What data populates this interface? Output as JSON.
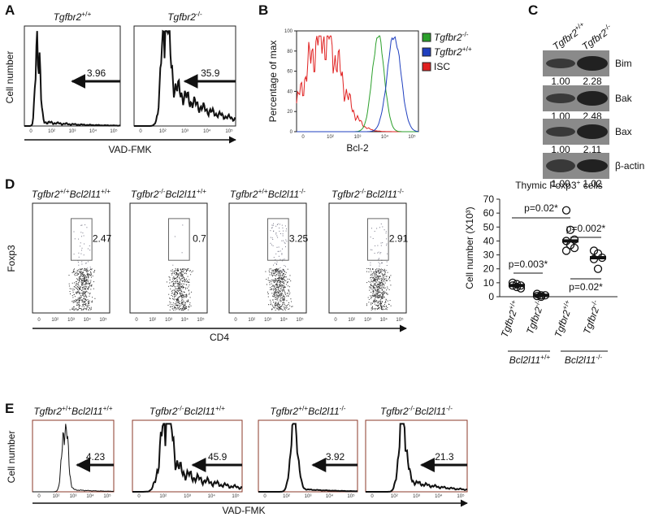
{
  "panel_labels": [
    "A",
    "B",
    "C",
    "D",
    "E"
  ],
  "flow_ticks": [
    "0",
    "10²",
    "10³",
    "10⁴",
    "10⁵"
  ],
  "panel_a": {
    "genotypes": [
      [
        "Tgfbr2",
        "+/+"
      ],
      [
        "Tgfbr2",
        "-/-"
      ]
    ],
    "gate_values": [
      "3.96",
      "35.9"
    ],
    "y_label": "Cell number",
    "x_label": "VAD-FMK"
  },
  "panel_b": {
    "y_label": "Percentage of max",
    "x_label": "Bcl-2",
    "ylim": [
      0,
      100
    ],
    "yticks": [
      0,
      20,
      40,
      60,
      80,
      100
    ],
    "legend": [
      {
        "label": [
          "Tgfbr2",
          "-/-"
        ],
        "color": "#2ca02c"
      },
      {
        "label": [
          "Tgfbr2",
          "+/+"
        ],
        "color": "#1f3fbf"
      },
      {
        "label": [
          "ISC"
        ],
        "color": "#e02020"
      }
    ]
  },
  "panel_c": {
    "columns": [
      [
        "Tgfbr2",
        "+/+"
      ],
      [
        "Tgfbr2",
        "-/-"
      ]
    ],
    "rows": [
      {
        "protein": "Bim",
        "values": [
          "1.00",
          "2.28"
        ]
      },
      {
        "protein": "Bak",
        "values": [
          "1.00",
          "2.48"
        ]
      },
      {
        "protein": "Bax",
        "values": [
          "1.00",
          "2.11"
        ]
      },
      {
        "protein": "β-actin",
        "values": [
          "1.00",
          "1.02"
        ]
      }
    ]
  },
  "panel_d": {
    "genotypes": [
      [
        "Tgfbr2",
        "+/+",
        "Bcl2l11",
        "+/+"
      ],
      [
        "Tgfbr2",
        "-/-",
        "Bcl2l11",
        "+/+"
      ],
      [
        "Tgfbr2",
        "+/+",
        "Bcl2l11",
        "-/-"
      ],
      [
        "Tgfbr2",
        "-/-",
        "Bcl2l11",
        "-/-"
      ]
    ],
    "gate_values": [
      "2.47",
      "0.7",
      "3.25",
      "2.91"
    ],
    "y_label": "Foxp3",
    "x_label": "CD4",
    "dot_plot": {
      "title": [
        "Thymic Foxp3",
        "+",
        " cells"
      ],
      "y_label": "Cell number (X10³)",
      "ylim": [
        0,
        70
      ],
      "yticks": [
        0,
        10,
        20,
        30,
        40,
        50,
        60,
        70
      ],
      "groups": [
        {
          "label": [
            "Tgfbr2",
            "+/+"
          ],
          "values": [
            10,
            9,
            8,
            8,
            7,
            6
          ],
          "mean": 8
        },
        {
          "label": [
            "Tgfbr2",
            "-/-"
          ],
          "values": [
            2,
            1,
            1,
            0.5,
            0
          ],
          "mean": 1
        },
        {
          "label": [
            "Tgfbr2",
            "+/+"
          ],
          "values": [
            62,
            48,
            41,
            40,
            37,
            35,
            33
          ],
          "mean": 40
        },
        {
          "label": [
            "Tgfbr2",
            "-/-"
          ],
          "values": [
            33,
            31,
            28,
            27,
            20
          ],
          "mean": 28
        }
      ],
      "group_labels": [
        [
          "Bcl2l11",
          "+/+"
        ],
        [
          "Bcl2l11",
          "-/-"
        ]
      ],
      "comparisons": [
        "p=0.02*",
        "p=0.002*",
        "p=0.003*",
        "p=0.02*"
      ]
    }
  },
  "panel_e": {
    "genotypes": [
      [
        "Tgfbr2",
        "+/+",
        "Bcl2l11",
        "+/+"
      ],
      [
        "Tgfbr2",
        "-/-",
        "Bcl2l11",
        "+/+"
      ],
      [
        "Tgfbr2",
        "+/+",
        "Bcl2l11",
        "-/-"
      ],
      [
        "Tgfbr2",
        "-/-",
        "Bcl2l11",
        "-/-"
      ]
    ],
    "gate_values": [
      "4.23",
      "45.9",
      "3.92",
      "21.3"
    ],
    "y_label": "Cell number",
    "x_label": "VAD-FMK"
  }
}
